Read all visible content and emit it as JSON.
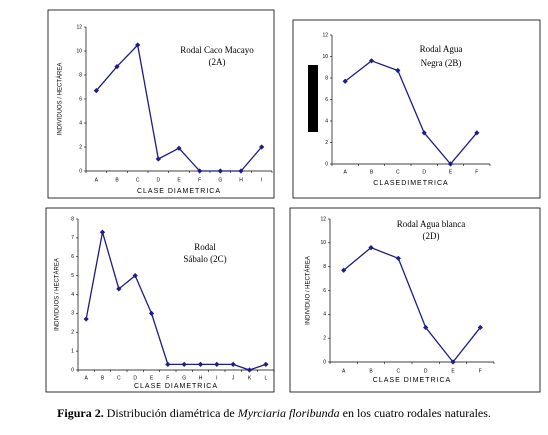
{
  "chart_data": [
    {
      "type": "line",
      "title": "Rodal Caco Macayo",
      "subtitle": "(2A)",
      "x_label": "CLASE DIAMETRICA",
      "y_label": "INDIVIDUOS / HECTÁREA",
      "categories": [
        "A",
        "B",
        "C",
        "D",
        "E",
        "F",
        "G",
        "H",
        "I"
      ],
      "values": [
        6.7,
        8.7,
        10.5,
        1,
        1.9,
        0,
        0,
        0,
        2
      ],
      "color": "#1c1c8a",
      "ylim": [
        0,
        12
      ],
      "yticks": [
        0,
        2,
        4,
        6,
        8,
        10,
        12
      ]
    },
    {
      "type": "line",
      "title": "Rodal Agua",
      "subtitle": "Negra (2B)",
      "x_label": "CLASEDIMETRICA",
      "categories": [
        "A",
        "B",
        "C",
        "D",
        "E",
        "F"
      ],
      "values": [
        7.7,
        9.6,
        8.7,
        2.9,
        0,
        2.9
      ],
      "color": "#1c1c8a",
      "ylim": [
        0,
        12
      ],
      "yticks": [
        0,
        2,
        4,
        6,
        8,
        10,
        12
      ]
    },
    {
      "type": "line",
      "title": "Rodal",
      "subtitle": "Sábalo (2C)",
      "x_label": "CLASE DIAMETRICA",
      "y_label": "INDIVIDUOS / HECTÁREA",
      "categories": [
        "A",
        "B",
        "C",
        "D",
        "E",
        "F",
        "G",
        "H",
        "I",
        "J",
        "K",
        "L"
      ],
      "values": [
        2.7,
        7.3,
        4.3,
        5,
        3,
        0.3,
        0.3,
        0.3,
        0.3,
        0.3,
        0,
        0.3
      ],
      "color": "#1c1c8a",
      "ylim": [
        0,
        8
      ],
      "yticks": [
        0,
        1,
        2,
        3,
        4,
        5,
        6,
        7,
        8
      ]
    },
    {
      "type": "line",
      "title": "Rodal Agua blanca",
      "subtitle": "(2D)",
      "x_label": "CLASE DIMETRICA",
      "y_label": "INDIVIDUO / HECTÁREA",
      "categories": [
        "A",
        "B",
        "C",
        "D",
        "E",
        "F"
      ],
      "values": [
        7.7,
        9.6,
        8.7,
        2.9,
        0,
        2.9
      ],
      "color": "#1c1c8a",
      "ylim": [
        0,
        12
      ],
      "yticks": [
        0,
        2,
        4,
        6,
        8,
        10,
        12
      ]
    }
  ],
  "caption": {
    "label": "Figura 2.",
    "before": "Distribución diamétrica de",
    "species": "Myrciaria floribunda",
    "after": "en los cuatro rodales naturales."
  }
}
